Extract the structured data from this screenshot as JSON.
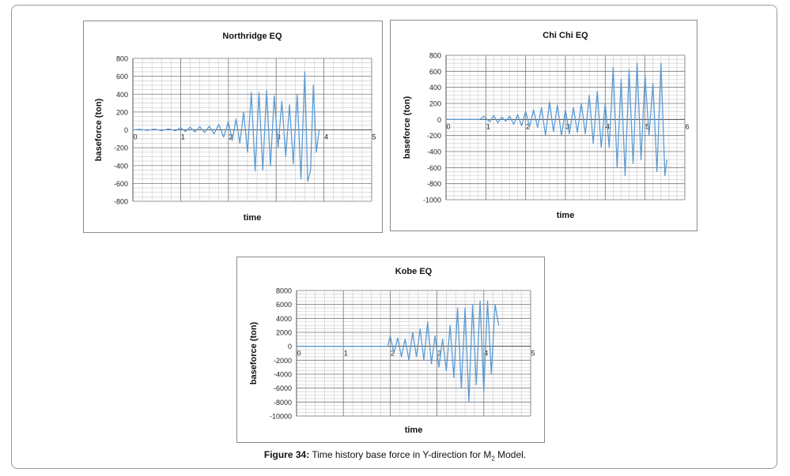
{
  "caption": {
    "label": "Figure 34:",
    "text_before": " Time history base force in Y-direction for M",
    "subscript": "2",
    "text_after": " Model."
  },
  "chart_data": [
    {
      "type": "line",
      "title": "Northridge EQ",
      "xlabel": "time",
      "ylabel": "baseforce (ton)",
      "xlim": [
        0,
        5
      ],
      "ylim": [
        -800,
        800
      ],
      "x_ticks": [
        0,
        1,
        2,
        3,
        4,
        5
      ],
      "y_ticks": [
        800,
        600,
        400,
        200,
        0,
        -200,
        -400,
        -600,
        -800
      ],
      "grid": true,
      "legend": "none",
      "color": "#5b9bd5",
      "series": [
        {
          "x": [
            0,
            0.15,
            0.3,
            0.45,
            0.6,
            0.75,
            0.9,
            1.0,
            1.1,
            1.2,
            1.3,
            1.4,
            1.5,
            1.6,
            1.7,
            1.8,
            1.9,
            2.0,
            2.08,
            2.16,
            2.24,
            2.32,
            2.4,
            2.48,
            2.56,
            2.64,
            2.72,
            2.8,
            2.88,
            2.96,
            3.04,
            3.12,
            3.2,
            3.28,
            3.36,
            3.44,
            3.52,
            3.6,
            3.66,
            3.72,
            3.78,
            3.84,
            3.9
          ],
          "y": [
            0,
            5,
            -5,
            8,
            -8,
            10,
            -10,
            25,
            -20,
            30,
            -25,
            35,
            -30,
            40,
            -45,
            60,
            -80,
            90,
            -120,
            120,
            -150,
            200,
            -250,
            420,
            -460,
            420,
            -450,
            440,
            -400,
            380,
            -200,
            320,
            -300,
            280,
            -380,
            400,
            -550,
            650,
            -580,
            -450,
            500,
            -250,
            0
          ]
        }
      ]
    },
    {
      "type": "line",
      "title": "Chi Chi EQ",
      "xlabel": "time",
      "ylabel": "baseforce (ton)",
      "xlim": [
        0,
        6
      ],
      "ylim": [
        -1000,
        800
      ],
      "x_ticks": [
        0,
        1,
        2,
        3,
        4,
        5,
        6
      ],
      "y_ticks": [
        800,
        600,
        400,
        200,
        0,
        -200,
        -400,
        -600,
        -800,
        -1000
      ],
      "grid": true,
      "legend": "none",
      "color": "#5b9bd5",
      "series": [
        {
          "x": [
            0,
            0.85,
            0.95,
            1.1,
            1.2,
            1.3,
            1.4,
            1.5,
            1.6,
            1.7,
            1.8,
            1.9,
            2.0,
            2.1,
            2.2,
            2.3,
            2.4,
            2.5,
            2.6,
            2.7,
            2.8,
            2.9,
            3.0,
            3.1,
            3.2,
            3.3,
            3.4,
            3.5,
            3.6,
            3.7,
            3.8,
            3.9,
            4.0,
            4.1,
            4.2,
            4.3,
            4.4,
            4.5,
            4.6,
            4.7,
            4.8,
            4.9,
            5.0,
            5.1,
            5.2,
            5.3,
            5.4,
            5.5,
            5.55
          ],
          "y": [
            0,
            0,
            40,
            -30,
            50,
            -40,
            30,
            -20,
            40,
            -60,
            60,
            -80,
            100,
            -90,
            120,
            -100,
            150,
            -200,
            220,
            -150,
            180,
            -200,
            120,
            -180,
            150,
            -160,
            200,
            -180,
            300,
            -300,
            350,
            -350,
            200,
            -350,
            650,
            -600,
            500,
            -700,
            620,
            -550,
            700,
            -500,
            550,
            -200,
            450,
            -650,
            700,
            -700,
            -500
          ]
        }
      ]
    },
    {
      "type": "line",
      "title": "Kobe EQ",
      "xlabel": "time",
      "ylabel": "baseforce (ton)",
      "xlim": [
        0,
        5
      ],
      "ylim": [
        -10000,
        8000
      ],
      "x_ticks": [
        0,
        1,
        2,
        3,
        4,
        5
      ],
      "y_ticks": [
        8000,
        6000,
        4000,
        2000,
        0,
        -2000,
        -4000,
        -6000,
        -8000,
        -10000
      ],
      "grid": true,
      "legend": "none",
      "color": "#5b9bd5",
      "series": [
        {
          "x": [
            0,
            1.95,
            2.0,
            2.08,
            2.16,
            2.24,
            2.32,
            2.4,
            2.48,
            2.56,
            2.64,
            2.72,
            2.8,
            2.88,
            2.96,
            3.04,
            3.12,
            3.2,
            3.28,
            3.36,
            3.44,
            3.52,
            3.6,
            3.68,
            3.76,
            3.84,
            3.92,
            4.0,
            4.08,
            4.16,
            4.24,
            4.32
          ],
          "y": [
            0,
            0,
            1500,
            -1000,
            1200,
            -1500,
            1000,
            -2000,
            2000,
            -1500,
            2500,
            -2000,
            3500,
            -2500,
            1500,
            -3000,
            1000,
            -3500,
            3000,
            -4500,
            5500,
            -6000,
            5500,
            -8000,
            6000,
            -5500,
            6500,
            -6500,
            6500,
            -4000,
            6000,
            3000
          ]
        }
      ]
    }
  ]
}
